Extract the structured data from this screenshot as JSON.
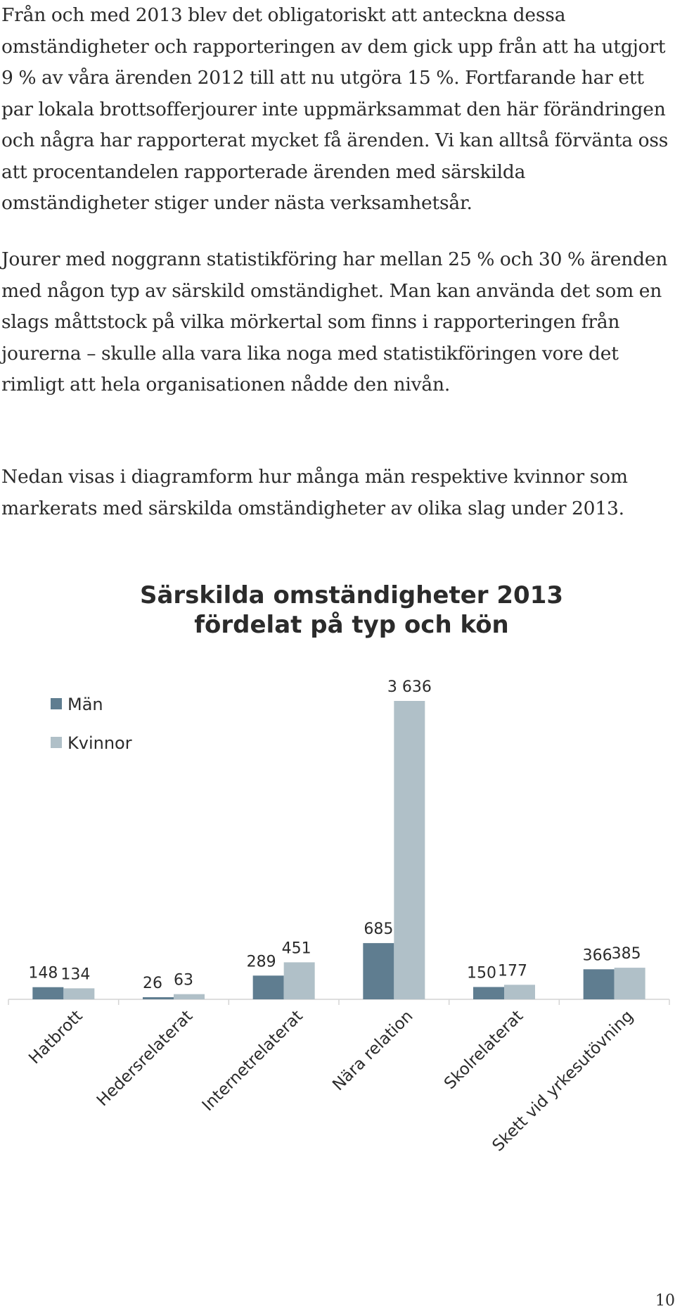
{
  "paragraphs": [
    "Från och med 2013 blev det obligatoriskt att anteckna dessa omständigheter och rapporteringen av dem gick upp från att ha utgjort 9 % av våra ärenden 2012 till att nu utgöra 15 %. Fortfarande har ett par lokala brottsofferjourer inte uppmärksammat den här förändringen och några har rapporterat mycket få ärenden. Vi kan alltså förvänta oss att procentandelen rapporterade ärenden med särskilda omständigheter stiger under nästa verksamhetsår.",
    "Jourer med noggrann statistikföring har mellan 25 % och 30 % ärenden med någon typ av särskild omständighet. Man kan använda det som en slags måttstock på vilka mörkertal som finns i rapporteringen från jourerna – skulle alla vara lika noga med statistikföringen vore det rimligt att hela organisationen nådde den nivån.",
    "Nedan visas i diagramform hur många män respektive kvinnor som markerats med särskilda omständigheter av olika slag under 2013."
  ],
  "chart_data": {
    "type": "bar",
    "title_line1": "Särskilda omständigheter 2013",
    "title_line2": "fördelat på typ och kön",
    "categories": [
      "Hatbrott",
      "Hedersrelaterat",
      "Internetrelaterat",
      "Nära relation",
      "Skolrelaterat",
      "Skett vid yrkesutövning"
    ],
    "series": [
      {
        "name": "Män",
        "values": [
          148,
          26,
          289,
          685,
          150,
          366
        ],
        "labels": [
          "148",
          "26",
          "289",
          "685",
          "150",
          "366"
        ],
        "color": "#5f7d90"
      },
      {
        "name": "Kvinnor",
        "values": [
          134,
          63,
          451,
          3636,
          177,
          385
        ],
        "labels": [
          "134",
          "63",
          "451",
          "3 636",
          "177",
          "385"
        ],
        "color": "#b0c0c8"
      }
    ],
    "ylim": [
      0,
      3636
    ],
    "legend": "top-left",
    "grid": false
  },
  "page_number": "10"
}
